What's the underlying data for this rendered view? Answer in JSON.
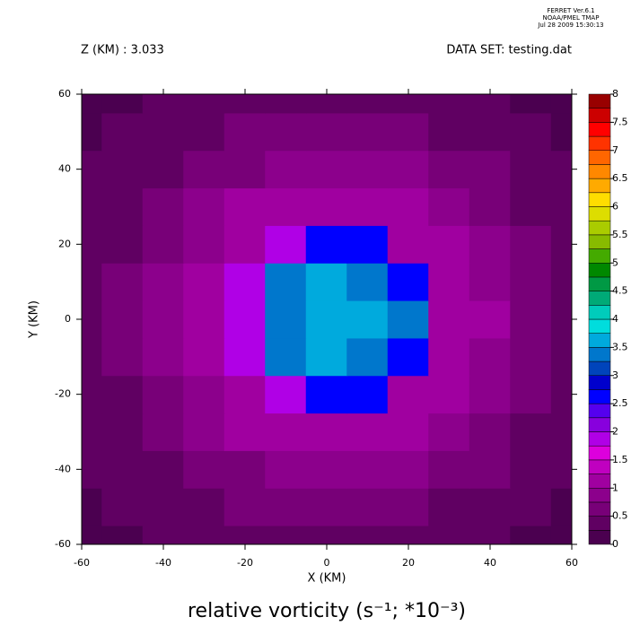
{
  "chart_data": {
    "type": "contour",
    "header": [
      "FERRET  Ver.6.1",
      "NOAA/PMEL TMAP",
      "Jul 28 2009 15:30:13"
    ],
    "subtitle_left": "Z (KM) : 3.033",
    "subtitle_right": "DATA SET: testing.dat",
    "title": "relative vorticity (s⁻¹; *10⁻³)",
    "x_label": "X (KM)",
    "y_label": "Y (KM)",
    "xlim": [
      -60,
      60
    ],
    "ylim": [
      -60,
      60
    ],
    "xticks": [
      -60,
      -40,
      -20,
      0,
      20,
      40,
      60
    ],
    "yticks": [
      -60,
      -40,
      -20,
      0,
      20,
      40,
      60
    ],
    "x": [
      -60,
      -50,
      -40,
      -30,
      -20,
      -10,
      0,
      10,
      20,
      30,
      40,
      50,
      60
    ],
    "y": [
      -60,
      -50,
      -40,
      -30,
      -20,
      -10,
      0,
      10,
      20,
      30,
      40,
      50,
      60
    ],
    "z": [
      [
        0.2,
        0.2,
        0.3,
        0.3,
        0.45,
        0.45,
        0.45,
        0.45,
        0.45,
        0.3,
        0.3,
        0.2,
        0.2
      ],
      [
        0.2,
        0.3,
        0.3,
        0.45,
        0.6,
        0.6,
        0.6,
        0.6,
        0.6,
        0.45,
        0.45,
        0.3,
        0.2
      ],
      [
        0.3,
        0.3,
        0.45,
        0.6,
        0.6,
        0.8,
        0.8,
        0.8,
        0.8,
        0.6,
        0.6,
        0.45,
        0.3
      ],
      [
        0.3,
        0.45,
        0.6,
        0.8,
        1.0,
        1.0,
        1.2,
        1.2,
        1.0,
        0.8,
        0.6,
        0.45,
        0.45
      ],
      [
        0.3,
        0.45,
        0.6,
        0.8,
        1.2,
        1.8,
        2.6,
        2.6,
        1.2,
        1.0,
        0.8,
        0.6,
        0.45
      ],
      [
        0.45,
        0.6,
        0.8,
        1.0,
        1.8,
        3.3,
        3.6,
        3.3,
        2.6,
        1.2,
        0.8,
        0.6,
        0.45
      ],
      [
        0.45,
        0.6,
        0.8,
        1.0,
        1.8,
        3.3,
        3.6,
        3.6,
        3.3,
        1.2,
        1.0,
        0.6,
        0.45
      ],
      [
        0.45,
        0.6,
        0.8,
        1.0,
        1.8,
        3.3,
        3.6,
        3.3,
        2.6,
        1.2,
        0.8,
        0.6,
        0.45
      ],
      [
        0.3,
        0.45,
        0.6,
        0.8,
        1.2,
        1.8,
        2.6,
        2.6,
        1.2,
        1.0,
        0.8,
        0.6,
        0.45
      ],
      [
        0.3,
        0.45,
        0.6,
        0.8,
        1.0,
        1.0,
        1.2,
        1.2,
        1.0,
        0.8,
        0.6,
        0.45,
        0.45
      ],
      [
        0.3,
        0.3,
        0.45,
        0.6,
        0.6,
        0.8,
        0.8,
        0.8,
        0.8,
        0.6,
        0.6,
        0.45,
        0.3
      ],
      [
        0.2,
        0.3,
        0.3,
        0.45,
        0.6,
        0.6,
        0.6,
        0.6,
        0.6,
        0.45,
        0.45,
        0.3,
        0.2
      ],
      [
        0.2,
        0.2,
        0.3,
        0.3,
        0.45,
        0.45,
        0.45,
        0.45,
        0.45,
        0.3,
        0.3,
        0.2,
        0.2
      ]
    ],
    "colorbar_lim": [
      0,
      8
    ],
    "level_step": 0.25,
    "colorbar_ticks": [
      0,
      0.5,
      1,
      1.5,
      2,
      2.5,
      3,
      3.5,
      4,
      4.5,
      5,
      5.5,
      6,
      6.5,
      7,
      7.5,
      8
    ],
    "colors": [
      "#4b0050",
      "#600062",
      "#780078",
      "#8c008c",
      "#a000a0",
      "#c000c0",
      "#dd00dd",
      "#b000e6",
      "#8800dd",
      "#5500ee",
      "#0000ff",
      "#0000cc",
      "#0044bb",
      "#0077cc",
      "#00aadd",
      "#00dddd",
      "#00ccbb",
      "#00aa77",
      "#009944",
      "#008800",
      "#44aa00",
      "#88bb00",
      "#aacc00",
      "#dddd00",
      "#ffdd00",
      "#ffaa00",
      "#ff8800",
      "#ff6600",
      "#ff3300",
      "#ff0000",
      "#cc0000",
      "#990000"
    ]
  }
}
